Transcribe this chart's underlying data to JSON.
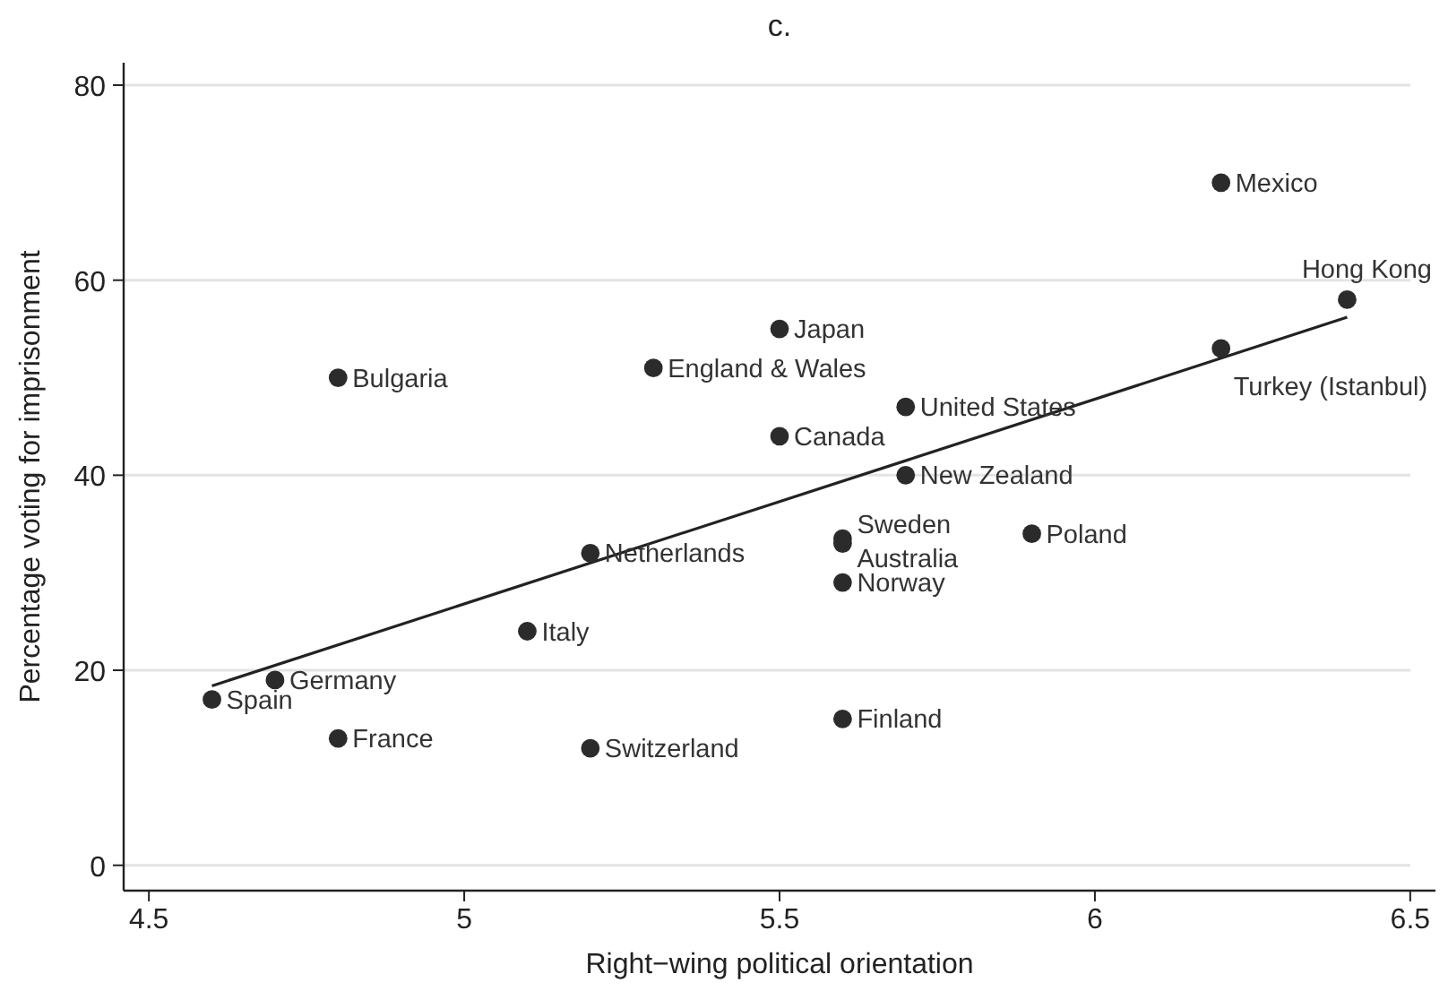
{
  "chart_data": {
    "type": "scatter",
    "title": "c.",
    "xlabel": "Right−wing political orientation",
    "ylabel": "Percentage voting for imprisonment",
    "xlim": [
      4.46,
      6.54
    ],
    "ylim": [
      -2.6,
      82.3
    ],
    "xticks": [
      4.5,
      5,
      5.5,
      6,
      6.5
    ],
    "yticks": [
      0,
      20,
      40,
      60,
      80
    ],
    "grid": "y",
    "marker": "circle",
    "series": [
      {
        "color": "#2b2b2b",
        "x": [
          6.2,
          6.4,
          6.2,
          5.5,
          5.3,
          4.8,
          5.7,
          5.5,
          5.7,
          5.6,
          5.6,
          5.9,
          5.2,
          5.6,
          5.1,
          4.7,
          4.6,
          4.8,
          5.2,
          5.6
        ],
        "values": [
          70,
          58,
          53,
          55,
          51,
          50,
          47,
          44,
          40,
          33.5,
          33,
          34,
          32,
          29,
          24,
          19,
          17,
          13,
          12,
          15
        ]
      },
      {
        "type": "line",
        "color": "#222222",
        "x": [
          4.6,
          6.4
        ],
        "values": [
          18.4,
          56.2
        ],
        "marker": "none"
      }
    ],
    "annotations": [
      {
        "text": "Mexico",
        "x": 6.2,
        "y": 70
      },
      {
        "text": "Hong Kong",
        "x": 6.4,
        "y": 58
      },
      {
        "text": "Turkey (Istanbul)",
        "x": 6.2,
        "y": 53
      },
      {
        "text": "Japan",
        "x": 5.5,
        "y": 55
      },
      {
        "text": "England & Wales",
        "x": 5.3,
        "y": 51
      },
      {
        "text": "Bulgaria",
        "x": 4.8,
        "y": 50
      },
      {
        "text": "United States",
        "x": 5.7,
        "y": 47
      },
      {
        "text": "Canada",
        "x": 5.5,
        "y": 44
      },
      {
        "text": "New Zealand",
        "x": 5.7,
        "y": 40
      },
      {
        "text": "Sweden",
        "x": 5.6,
        "y": 33.5
      },
      {
        "text": "Australia",
        "x": 5.6,
        "y": 33
      },
      {
        "text": "Poland",
        "x": 5.9,
        "y": 34
      },
      {
        "text": "Netherlands",
        "x": 5.2,
        "y": 32
      },
      {
        "text": "Norway",
        "x": 5.6,
        "y": 29
      },
      {
        "text": "Italy",
        "x": 5.1,
        "y": 24
      },
      {
        "text": "Germany",
        "x": 4.7,
        "y": 19
      },
      {
        "text": "Spain",
        "x": 4.6,
        "y": 17
      },
      {
        "text": "France",
        "x": 4.8,
        "y": 13
      },
      {
        "text": "Switzerland",
        "x": 5.2,
        "y": 12
      },
      {
        "text": "Finland",
        "x": 5.6,
        "y": 15
      }
    ]
  }
}
